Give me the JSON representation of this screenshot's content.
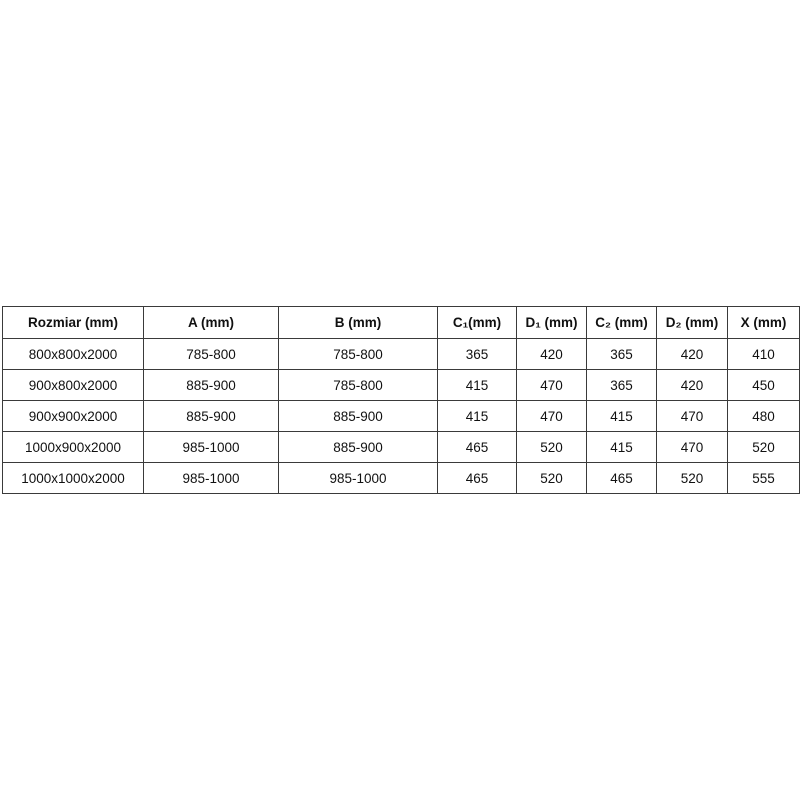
{
  "table": {
    "headers": [
      "Rozmiar (mm)",
      "A (mm)",
      "B (mm)",
      "C₁(mm)",
      "D₁ (mm)",
      "C₂ (mm)",
      "D₂ (mm)",
      "X (mm)"
    ],
    "rows": [
      [
        "800x800x2000",
        "785-800",
        "785-800",
        "365",
        "420",
        "365",
        "420",
        "410"
      ],
      [
        "900x800x2000",
        "885-900",
        "785-800",
        "415",
        "470",
        "365",
        "420",
        "450"
      ],
      [
        "900x900x2000",
        "885-900",
        "885-900",
        "415",
        "470",
        "415",
        "470",
        "480"
      ],
      [
        "1000x900x2000",
        "985-1000",
        "885-900",
        "465",
        "520",
        "415",
        "470",
        "520"
      ],
      [
        "1000x1000x2000",
        "985-1000",
        "985-1000",
        "465",
        "520",
        "465",
        "520",
        "555"
      ]
    ]
  }
}
